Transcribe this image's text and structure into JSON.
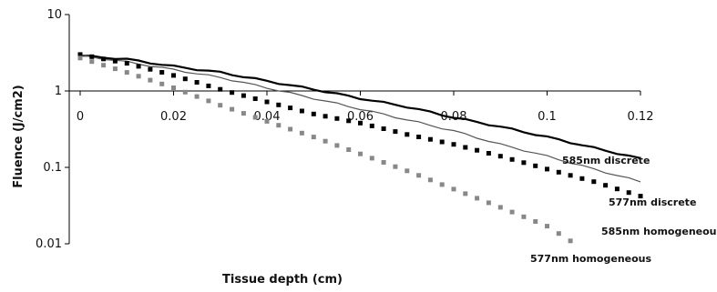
{
  "chart_data": {
    "type": "line",
    "title": "",
    "xlabel": "Tissue depth (cm)",
    "ylabel": "Fluence (J/cm2)",
    "xlim": [
      0,
      0.12
    ],
    "ylim": [
      0.01,
      10
    ],
    "y_scale": "log",
    "x_tick_labels": [
      "0",
      "0.02",
      "0.04",
      "0.06",
      "0.08",
      "0.1",
      "0.12"
    ],
    "x_ticks": [
      0,
      0.02,
      0.04,
      0.06,
      0.08,
      0.1,
      0.12
    ],
    "y_tick_labels": [
      "10",
      "1",
      "0.1",
      "0.01"
    ],
    "y_ticks": [
      10,
      1,
      0.1,
      0.01
    ],
    "x_axis_crosses_at_y": 1,
    "grid": false,
    "legend": "none (series labelled directly at line ends)",
    "series": [
      {
        "name": "585nm discrete",
        "style": "solid-line",
        "color": "#000000",
        "x": [
          0,
          0.01,
          0.02,
          0.03,
          0.04,
          0.05,
          0.06,
          0.07,
          0.08,
          0.09,
          0.1,
          0.11,
          0.12
        ],
        "values": [
          2.9,
          2.6,
          2.1,
          1.75,
          1.35,
          1.05,
          0.8,
          0.62,
          0.45,
          0.34,
          0.25,
          0.18,
          0.13
        ]
      },
      {
        "name": "577nm discrete",
        "style": "thin-line",
        "color": "#555555",
        "x": [
          0,
          0.01,
          0.02,
          0.03,
          0.04,
          0.05,
          0.06,
          0.07,
          0.08,
          0.09,
          0.1,
          0.11,
          0.12
        ],
        "values": [
          2.9,
          2.4,
          1.9,
          1.5,
          1.1,
          0.8,
          0.58,
          0.42,
          0.3,
          0.2,
          0.14,
          0.095,
          0.065
        ]
      },
      {
        "name": "585nm homogeneous",
        "style": "square-markers",
        "color": "#000000",
        "x": [
          0,
          0.01,
          0.02,
          0.03,
          0.04,
          0.05,
          0.06,
          0.07,
          0.08,
          0.09,
          0.1,
          0.11,
          0.12
        ],
        "values": [
          3.0,
          2.3,
          1.6,
          1.05,
          0.72,
          0.5,
          0.38,
          0.27,
          0.2,
          0.14,
          0.095,
          0.065,
          0.042
        ]
      },
      {
        "name": "577nm homogeneous",
        "style": "grey-square-markers",
        "color": "#888888",
        "x": [
          0,
          0.01,
          0.02,
          0.03,
          0.04,
          0.05,
          0.06,
          0.07,
          0.08,
          0.09,
          0.1,
          0.106
        ],
        "values": [
          2.7,
          1.75,
          1.1,
          0.65,
          0.4,
          0.25,
          0.15,
          0.09,
          0.052,
          0.03,
          0.017,
          0.01
        ]
      }
    ]
  }
}
